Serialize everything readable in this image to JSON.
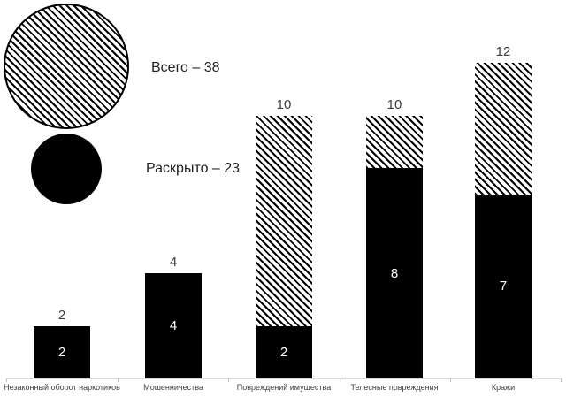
{
  "page": {
    "background": "#ffffff"
  },
  "legend": {
    "total": {
      "swatch": "hatched-circle",
      "label": "Всего – 38"
    },
    "solved": {
      "swatch": "black-circle",
      "label": "Раскрыто – 23"
    }
  },
  "chart_data": {
    "type": "bar",
    "subtype": "stacked-pictorial",
    "title": "",
    "xlabel": "",
    "ylabel": "",
    "categories": [
      "Незаконный оборот наркотиков",
      "Мошенничества",
      "Повреждений имущества",
      "Телесные повреждения",
      "Кражи"
    ],
    "series": [
      {
        "name": "Всего",
        "legend_label": "Всего – 38",
        "sum": 38,
        "fill": "diagonal-hatch",
        "values": [
          2,
          4,
          10,
          10,
          12
        ]
      },
      {
        "name": "Раскрыто",
        "legend_label": "Раскрыто – 23",
        "sum": 23,
        "fill": "solid-black",
        "values": [
          2,
          4,
          2,
          8,
          7
        ]
      }
    ],
    "bar_value_labels_above": [
      "2",
      "4",
      "10",
      "10",
      "12"
    ],
    "bar_value_labels_inside": [
      "2",
      "4",
      "2",
      "8",
      "7"
    ],
    "ylim": [
      0,
      12
    ],
    "grid": false,
    "legend_position": "top-left",
    "colors": {
      "ink": "#000000",
      "background": "#ffffff",
      "axis_line": "#d9d9d9",
      "label_text": "#404040",
      "inside_value_text": "#ffffff"
    }
  }
}
